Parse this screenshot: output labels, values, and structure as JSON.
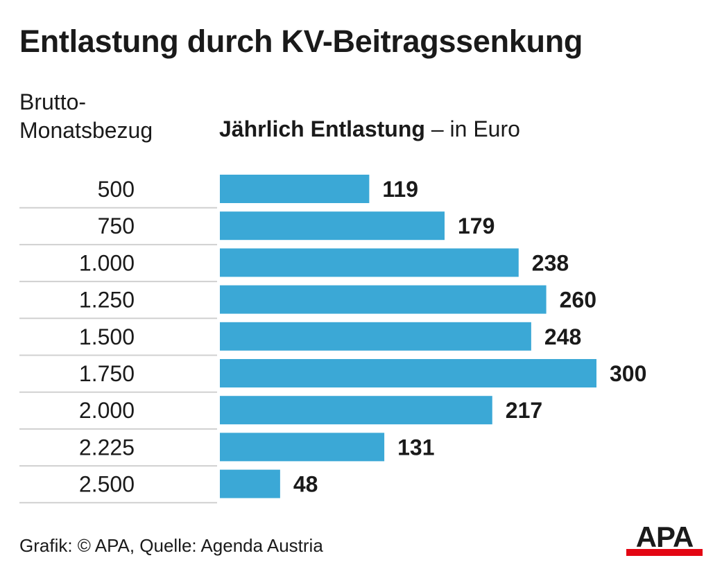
{
  "title": "Entlastung durch KV-Beitragssenkung",
  "category_header": {
    "line1": "Brutto-",
    "line2": "Monatsbezug"
  },
  "value_header": {
    "bold": "Jährlich Entlastung",
    "rest": " – in Euro"
  },
  "footer": "Grafik: © APA, Quelle: Agenda Austria",
  "logo": {
    "text": "APA",
    "text_color": "#1a1a1a",
    "bar_color": "#e30613"
  },
  "colors": {
    "bar": "#3ba8d6",
    "separator": "#d0d0d0",
    "text": "#1a1a1a"
  },
  "chart_data": {
    "type": "bar",
    "orientation": "horizontal",
    "categories": [
      "500",
      "750",
      "1.000",
      "1.250",
      "1.500",
      "1.750",
      "2.000",
      "2.225",
      "2.500"
    ],
    "values": [
      119,
      179,
      238,
      260,
      248,
      300,
      217,
      131,
      48
    ],
    "value_labels": [
      "119",
      "179",
      "238",
      "260",
      "248",
      "300",
      "217",
      "131",
      "48"
    ],
    "xlim": [
      0,
      300
    ],
    "grid": false,
    "legend": "none"
  }
}
